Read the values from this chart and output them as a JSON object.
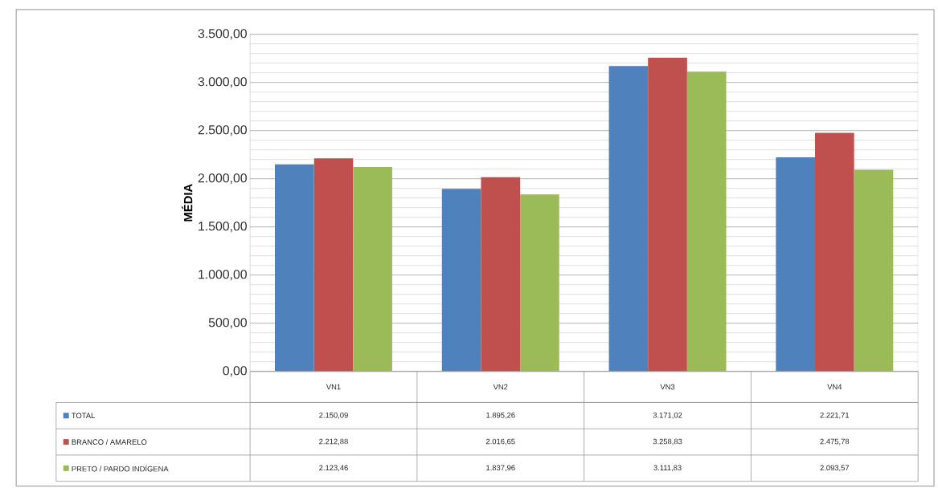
{
  "chart_data": {
    "type": "bar",
    "ylabel": "MÉDIA",
    "categories": [
      "VN1",
      "VN2",
      "VN3",
      "VN4"
    ],
    "series": [
      {
        "name": "TOTAL",
        "color": "#4f81bd",
        "values": [
          2150.09,
          1895.26,
          3171.02,
          2221.71
        ],
        "value_labels": [
          "2.150,09",
          "1.895,26",
          "3.171,02",
          "2.221,71"
        ]
      },
      {
        "name": "BRANCO / AMARELO",
        "color": "#c0504d",
        "values": [
          2212.88,
          2016.65,
          3258.83,
          2475.78
        ],
        "value_labels": [
          "2.212,88",
          "2.016,65",
          "3.258,83",
          "2.475,78"
        ]
      },
      {
        "name": "PRETO / PARDO INDÍGENA",
        "color": "#9bbb59",
        "values": [
          2123.46,
          1837.96,
          3111.83,
          2093.57
        ],
        "value_labels": [
          "2.123,46",
          "1.837,96",
          "3.111,83",
          "2.093,57"
        ]
      }
    ],
    "ylim": [
      0,
      3500
    ],
    "yticks": [
      {
        "value": 0,
        "label": "0,00"
      },
      {
        "value": 500,
        "label": "500,00"
      },
      {
        "value": 1000,
        "label": "1.000,00"
      },
      {
        "value": 1500,
        "label": "1.500,00"
      },
      {
        "value": 2000,
        "label": "2.000,00"
      },
      {
        "value": 2500,
        "label": "2.500,00"
      },
      {
        "value": 3000,
        "label": "3.000,00"
      },
      {
        "value": 3500,
        "label": "3.500,00"
      }
    ],
    "grid": true,
    "legend": "bottom"
  }
}
